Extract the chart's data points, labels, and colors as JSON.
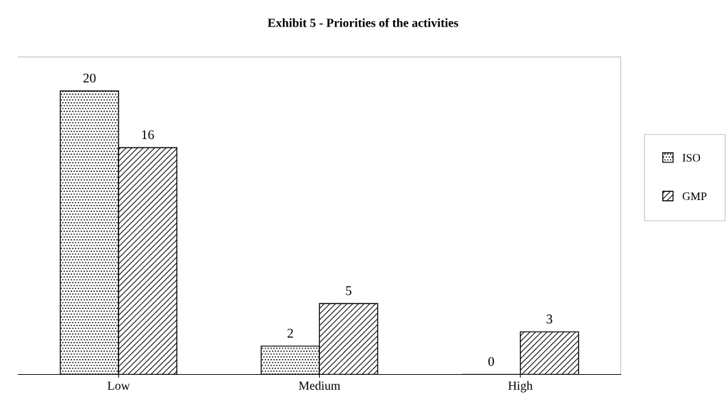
{
  "chart_data": {
    "type": "bar",
    "title": "Exhibit 5 - Priorities of the activities",
    "categories": [
      "Low",
      "Medium",
      "High"
    ],
    "series": [
      {
        "name": "ISO",
        "color": "#000000",
        "values": [
          20,
          2,
          0
        ]
      },
      {
        "name": "GMP",
        "color": "#000000",
        "values": [
          16,
          5,
          3
        ]
      }
    ],
    "data_labels": true,
    "legend": "right",
    "grid": false
  }
}
